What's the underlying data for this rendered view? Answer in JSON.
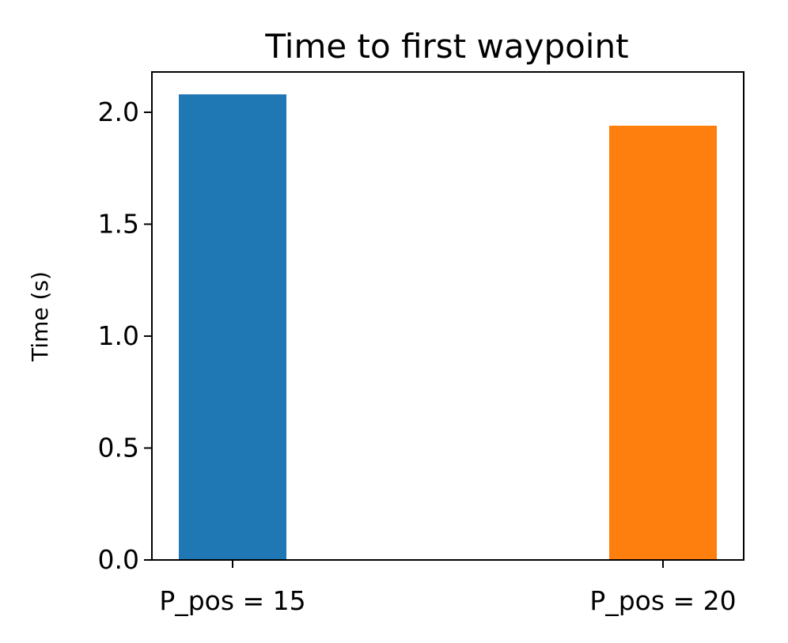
{
  "chart_data": {
    "type": "bar",
    "title": "Time to first waypoint",
    "xlabel": "",
    "ylabel": "Time (s)",
    "categories": [
      "P_pos = 15",
      "P_pos = 20"
    ],
    "values": [
      2.08,
      1.94
    ],
    "colors": [
      "#1f77b4",
      "#ff7f0e"
    ],
    "ylim": [
      0,
      2.18
    ],
    "yticks": [
      "0.0",
      "0.5",
      "1.0",
      "1.5",
      "2.0"
    ],
    "grid": false,
    "legend": "none"
  }
}
